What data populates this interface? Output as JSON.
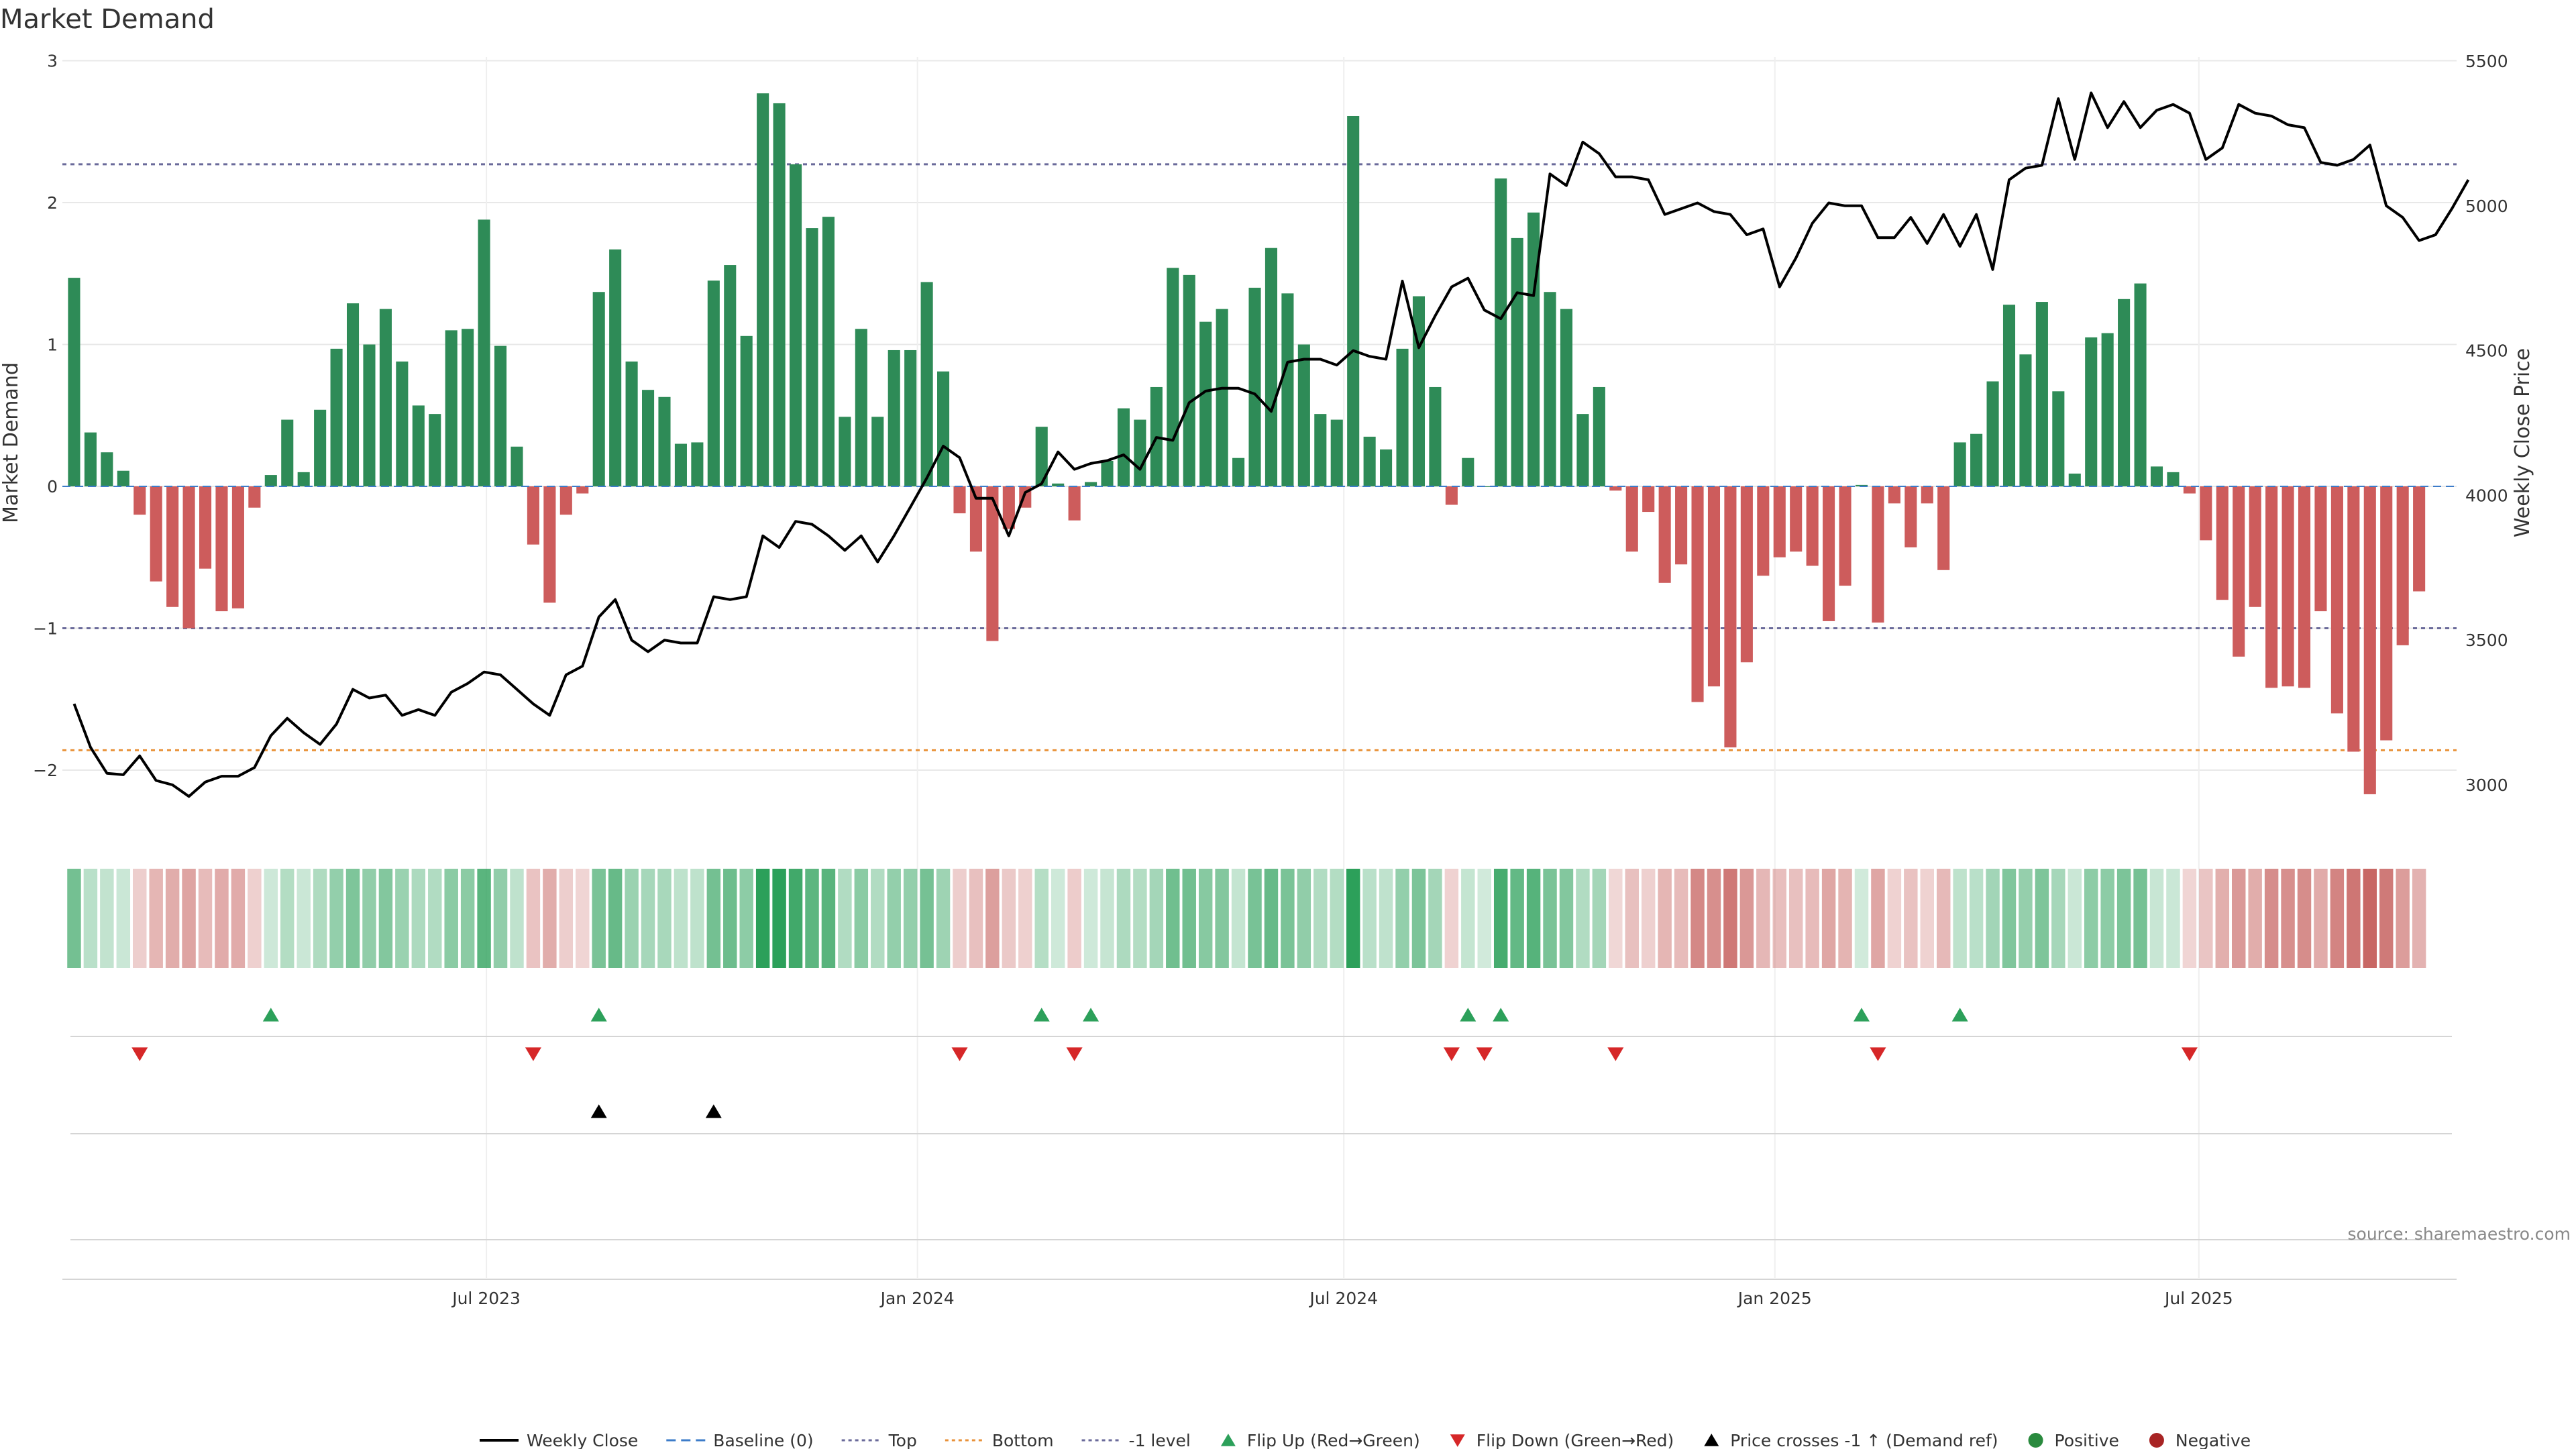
{
  "chart_data": {
    "type": "bar",
    "title": "Market Demand",
    "ylabel": "Market Demand",
    "y2label": "Weekly Close Price",
    "ylim": [
      -2.4,
      3
    ],
    "y2lim": [
      2850,
      5500
    ],
    "xlim": [
      "2023-01-01",
      "2025-10-19"
    ],
    "yticks": [
      3,
      2,
      1,
      0,
      -1,
      -2
    ],
    "yticklabels": [
      "3",
      "2",
      "1",
      "0",
      "−1",
      "−2"
    ],
    "y2ticks": [
      5500,
      5000,
      4500,
      4000,
      3500,
      3000
    ],
    "xticks": [
      {
        "date": "2023-07-01",
        "label": "Jul 2023"
      },
      {
        "date": "2024-01-01",
        "label": "Jan 2024"
      },
      {
        "date": "2024-07-01",
        "label": "Jul 2024"
      },
      {
        "date": "2025-01-01",
        "label": "Jan 2025"
      },
      {
        "date": "2025-07-01",
        "label": "Jul 2025"
      }
    ],
    "grid": true,
    "start_week": "2023-01-06",
    "demand": [
      1.47,
      0.38,
      0.24,
      0.11,
      -0.2,
      -0.67,
      -0.85,
      -1.0,
      -0.58,
      -0.88,
      -0.86,
      -0.15,
      0.08,
      0.47,
      0.1,
      0.54,
      0.97,
      1.29,
      1.0,
      1.25,
      0.88,
      0.57,
      0.51,
      1.1,
      1.11,
      1.88,
      0.99,
      0.28,
      -0.41,
      -0.82,
      -0.2,
      -0.05,
      1.37,
      1.67,
      0.88,
      0.68,
      0.63,
      0.3,
      0.31,
      1.45,
      1.56,
      1.06,
      2.77,
      2.7,
      2.27,
      1.82,
      1.9,
      0.49,
      1.11,
      0.49,
      0.96,
      0.96,
      1.44,
      0.81,
      -0.19,
      -0.46,
      -1.09,
      -0.3,
      -0.15,
      0.42,
      0.02,
      -0.24,
      0.03,
      0.18,
      0.55,
      0.47,
      0.7,
      1.54,
      1.49,
      1.16,
      1.25,
      0.2,
      1.4,
      1.68,
      1.36,
      1.0,
      0.51,
      0.47,
      2.61,
      0.35,
      0.26,
      0.97,
      1.34,
      0.7,
      -0.13,
      0.2,
      0.0,
      2.17,
      1.75,
      1.93,
      1.37,
      1.25,
      0.51,
      0.7,
      -0.03,
      -0.46,
      -0.18,
      -0.68,
      -0.55,
      -1.52,
      -1.41,
      -1.84,
      -1.24,
      -0.63,
      -0.5,
      -0.46,
      -0.56,
      -0.95,
      -0.7,
      0.01,
      -0.96,
      -0.12,
      -0.43,
      -0.12,
      -0.59,
      0.31,
      0.37,
      0.74,
      1.28,
      0.93,
      1.3,
      0.67,
      0.09,
      1.05,
      1.08,
      1.32,
      1.43,
      0.14,
      0.1,
      -0.05,
      -0.38,
      -0.8,
      -1.2,
      -0.85,
      -1.42,
      -1.41,
      -1.42,
      -0.88,
      -1.6,
      -1.87,
      -2.17,
      -1.79,
      -1.12,
      -0.74
    ],
    "price_series": {
      "name": "Weekly Close",
      "values": [
        3280,
        3130,
        3040,
        3035,
        3100,
        3015,
        3000,
        2960,
        3010,
        3030,
        3030,
        3060,
        3170,
        3230,
        3180,
        3140,
        3210,
        3330,
        3300,
        3310,
        3240,
        3260,
        3240,
        3320,
        3350,
        3390,
        3380,
        3330,
        3280,
        3240,
        3380,
        3410,
        3580,
        3640,
        3500,
        3460,
        3500,
        3490,
        3490,
        3650,
        3640,
        3650,
        3860,
        3820,
        3910,
        3900,
        3860,
        3810,
        3860,
        3770,
        3860,
        3960,
        4060,
        4170,
        4130,
        3990,
        3990,
        3860,
        4010,
        4040,
        4150,
        4090,
        4110,
        4120,
        4140,
        4090,
        4200,
        4190,
        4320,
        4360,
        4370,
        4370,
        4350,
        4290,
        4460,
        4470,
        4470,
        4450,
        4500,
        4480,
        4470,
        4740,
        4510,
        4620,
        4720,
        4750,
        4640,
        4610,
        4700,
        4690,
        5110,
        5070,
        5220,
        5180,
        5100,
        5100,
        5090,
        4970,
        4990,
        5010,
        4980,
        4970,
        4900,
        4920,
        4720,
        4820,
        4940,
        5010,
        5000,
        5000,
        4890,
        4890,
        4960,
        4870,
        4970,
        4860,
        4970,
        4780,
        5090,
        5130,
        5140,
        5370,
        5160,
        5390,
        5270,
        5360,
        5270,
        5330,
        5350,
        5320,
        5160,
        5200,
        5350,
        5320,
        5310,
        5280,
        5270,
        5150,
        5140,
        5160,
        5210,
        5000,
        4960,
        4880,
        4900,
        4990,
        5090
      ]
    },
    "levels": [
      {
        "name": "Top",
        "value": 2.27,
        "color": "#6a6a9a"
      },
      {
        "name": "Bottom",
        "value": -1.86,
        "color": "#e8923a"
      },
      {
        "name": "-1 level",
        "value": -1.0,
        "color": "#6a6a9a"
      }
    ],
    "events": {
      "flip_up_weeks": [
        12,
        32,
        59,
        62,
        85,
        87,
        109,
        115
      ],
      "flip_down_weeks": [
        4,
        28,
        54,
        61,
        84,
        86,
        94,
        110,
        129
      ],
      "price_cross_weeks": [
        32,
        39
      ]
    },
    "legend": {
      "placement": "bottom",
      "items": [
        {
          "label": "Weekly Close",
          "marker": "line",
          "color": "#000000"
        },
        {
          "label": "Baseline (0)",
          "marker": "dash",
          "color": "#3d7cc9"
        },
        {
          "label": "Top",
          "marker": "dotted",
          "color": "#6a6a9a"
        },
        {
          "label": "Bottom",
          "marker": "dotted",
          "color": "#e8923a"
        },
        {
          "label": "-1 level",
          "marker": "dotted",
          "color": "#6a6a9a"
        },
        {
          "label": "Flip Up (Red→Green)",
          "marker": "triangle-up",
          "color": "#2ca05a"
        },
        {
          "label": "Flip Down (Green→Red)",
          "marker": "triangle-down",
          "color": "#d62728"
        },
        {
          "label": "Price crosses -1 ↑ (Demand ref)",
          "marker": "triangle-up",
          "color": "#000000"
        },
        {
          "label": "Positive",
          "marker": "circle",
          "color": "#2a8a3e"
        },
        {
          "label": "Negative",
          "marker": "circle",
          "color": "#a82424"
        }
      ]
    },
    "source": "source: sharemaestro.com",
    "colors": {
      "positive_bar": "#2e8b57",
      "negative_bar": "#cd5c5c",
      "price_line": "#000000",
      "grid": "#e8e8e8"
    }
  }
}
